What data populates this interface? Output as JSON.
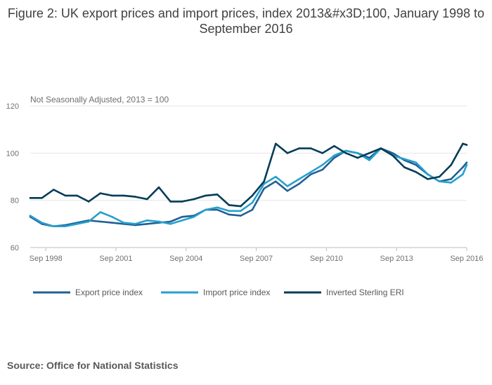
{
  "title": "Figure 2: UK export prices and import prices, index 2013&#x3D;100, January 1998 to September 2016",
  "source": "Source: Office for National Statistics",
  "chart_data": {
    "type": "line",
    "subtitle": "Not Seasonally Adjusted, 2013 = 100",
    "x_start": "1998-01",
    "x_end": "2016-09",
    "ylim": [
      60,
      120
    ],
    "yticks": [
      60,
      80,
      100,
      120
    ],
    "xtick_labels": [
      "Sep 1998",
      "Sep 2001",
      "Sep 2004",
      "Sep 2007",
      "Sep 2010",
      "Sep 2013",
      "Sep 2016"
    ],
    "grid": true,
    "legend_position": "bottom",
    "series": [
      {
        "name": "Export price index",
        "color": "#206095",
        "points": [
          [
            "1998-01",
            73
          ],
          [
            "1998-07",
            70
          ],
          [
            "1999-01",
            69
          ],
          [
            "1999-07",
            69.5
          ],
          [
            "2000-01",
            70.5
          ],
          [
            "2000-07",
            71.5
          ],
          [
            "2001-01",
            71
          ],
          [
            "2001-07",
            70.5
          ],
          [
            "2002-01",
            70
          ],
          [
            "2002-07",
            69.5
          ],
          [
            "2003-01",
            70
          ],
          [
            "2003-07",
            70.5
          ],
          [
            "2004-01",
            71
          ],
          [
            "2004-07",
            73
          ],
          [
            "2005-01",
            73.5
          ],
          [
            "2005-07",
            76
          ],
          [
            "2006-01",
            76
          ],
          [
            "2006-07",
            74
          ],
          [
            "2007-01",
            73.5
          ],
          [
            "2007-07",
            76
          ],
          [
            "2008-01",
            85
          ],
          [
            "2008-07",
            88
          ],
          [
            "2009-01",
            84
          ],
          [
            "2009-07",
            87
          ],
          [
            "2010-01",
            91
          ],
          [
            "2010-07",
            93
          ],
          [
            "2011-01",
            98
          ],
          [
            "2011-07",
            101
          ],
          [
            "2012-01",
            100
          ],
          [
            "2012-07",
            98
          ],
          [
            "2013-01",
            102
          ],
          [
            "2013-07",
            100
          ],
          [
            "2014-01",
            97
          ],
          [
            "2014-07",
            95
          ],
          [
            "2015-01",
            91
          ],
          [
            "2015-07",
            88
          ],
          [
            "2016-01",
            89
          ],
          [
            "2016-07",
            94
          ],
          [
            "2016-09",
            96
          ]
        ]
      },
      {
        "name": "Import price index",
        "color": "#27a0cc",
        "points": [
          [
            "1998-01",
            73.5
          ],
          [
            "1998-07",
            70.5
          ],
          [
            "1999-01",
            69
          ],
          [
            "1999-07",
            69
          ],
          [
            "2000-01",
            70
          ],
          [
            "2000-07",
            71
          ],
          [
            "2001-01",
            75
          ],
          [
            "2001-07",
            73
          ],
          [
            "2002-01",
            70.5
          ],
          [
            "2002-07",
            70
          ],
          [
            "2003-01",
            71.5
          ],
          [
            "2003-07",
            71
          ],
          [
            "2004-01",
            70
          ],
          [
            "2004-07",
            71.5
          ],
          [
            "2005-01",
            73
          ],
          [
            "2005-07",
            76
          ],
          [
            "2006-01",
            77
          ],
          [
            "2006-07",
            75.5
          ],
          [
            "2007-01",
            75.5
          ],
          [
            "2007-07",
            79
          ],
          [
            "2008-01",
            87
          ],
          [
            "2008-07",
            90
          ],
          [
            "2009-01",
            86
          ],
          [
            "2009-07",
            89
          ],
          [
            "2010-01",
            92
          ],
          [
            "2010-07",
            95
          ],
          [
            "2011-01",
            99
          ],
          [
            "2011-07",
            101
          ],
          [
            "2012-01",
            100
          ],
          [
            "2012-07",
            97
          ],
          [
            "2013-01",
            102
          ],
          [
            "2013-07",
            99
          ],
          [
            "2014-01",
            97.5
          ],
          [
            "2014-07",
            96
          ],
          [
            "2015-01",
            91
          ],
          [
            "2015-07",
            88
          ],
          [
            "2016-01",
            87.5
          ],
          [
            "2016-07",
            91
          ],
          [
            "2016-09",
            95
          ]
        ]
      },
      {
        "name": "Inverted Sterling ERI",
        "color": "#003c57",
        "points": [
          [
            "1998-01",
            81
          ],
          [
            "1998-07",
            81
          ],
          [
            "1999-01",
            84.5
          ],
          [
            "1999-07",
            82
          ],
          [
            "2000-01",
            82
          ],
          [
            "2000-07",
            79.5
          ],
          [
            "2001-01",
            83
          ],
          [
            "2001-07",
            82
          ],
          [
            "2002-01",
            82
          ],
          [
            "2002-07",
            81.5
          ],
          [
            "2003-01",
            80.5
          ],
          [
            "2003-07",
            85.5
          ],
          [
            "2004-01",
            79.5
          ],
          [
            "2004-07",
            79.5
          ],
          [
            "2005-01",
            80.5
          ],
          [
            "2005-07",
            82
          ],
          [
            "2006-01",
            82.5
          ],
          [
            "2006-07",
            78
          ],
          [
            "2007-01",
            77.5
          ],
          [
            "2007-07",
            82
          ],
          [
            "2008-01",
            88
          ],
          [
            "2008-07",
            104
          ],
          [
            "2009-01",
            100
          ],
          [
            "2009-07",
            102
          ],
          [
            "2010-01",
            102
          ],
          [
            "2010-07",
            100
          ],
          [
            "2011-01",
            103
          ],
          [
            "2011-07",
            100
          ],
          [
            "2012-01",
            98
          ],
          [
            "2012-07",
            100
          ],
          [
            "2013-01",
            102
          ],
          [
            "2013-07",
            99
          ],
          [
            "2014-01",
            94
          ],
          [
            "2014-07",
            92
          ],
          [
            "2015-01",
            89
          ],
          [
            "2015-07",
            90
          ],
          [
            "2016-01",
            95
          ],
          [
            "2016-07",
            104
          ],
          [
            "2016-09",
            103.5
          ]
        ]
      }
    ]
  }
}
